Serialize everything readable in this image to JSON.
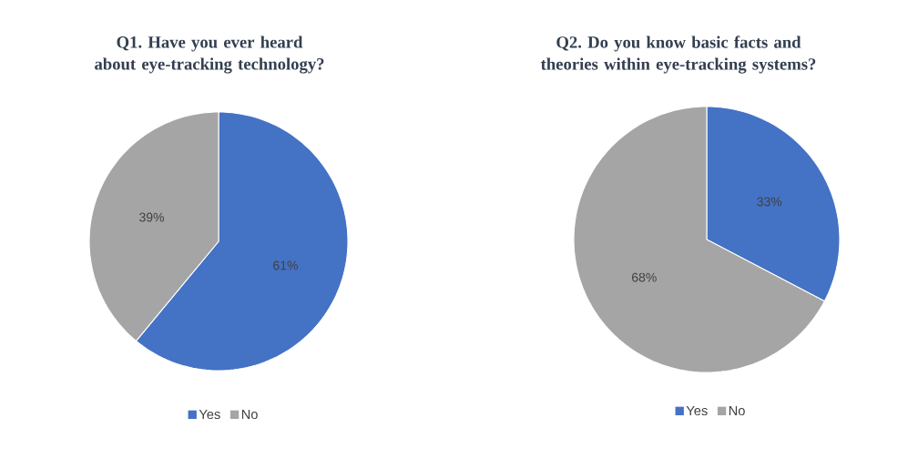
{
  "chart_data": [
    {
      "type": "pie",
      "title": "Q1. Have you ever heard about eye-tracking technology?",
      "categories": [
        "Yes",
        "No"
      ],
      "values": [
        61,
        39
      ],
      "colors": [
        "#4472c4",
        "#a5a5a5"
      ],
      "value_labels": [
        "61%",
        "39%"
      ],
      "legend": "bottom"
    },
    {
      "type": "pie",
      "title": "Q2. Do you know basic facts and theories within eye-tracking systems?",
      "categories": [
        "Yes",
        "No"
      ],
      "values": [
        33,
        68
      ],
      "colors": [
        "#4472c4",
        "#a5a5a5"
      ],
      "value_labels": [
        "33%",
        "68%"
      ],
      "legend": "bottom"
    }
  ]
}
